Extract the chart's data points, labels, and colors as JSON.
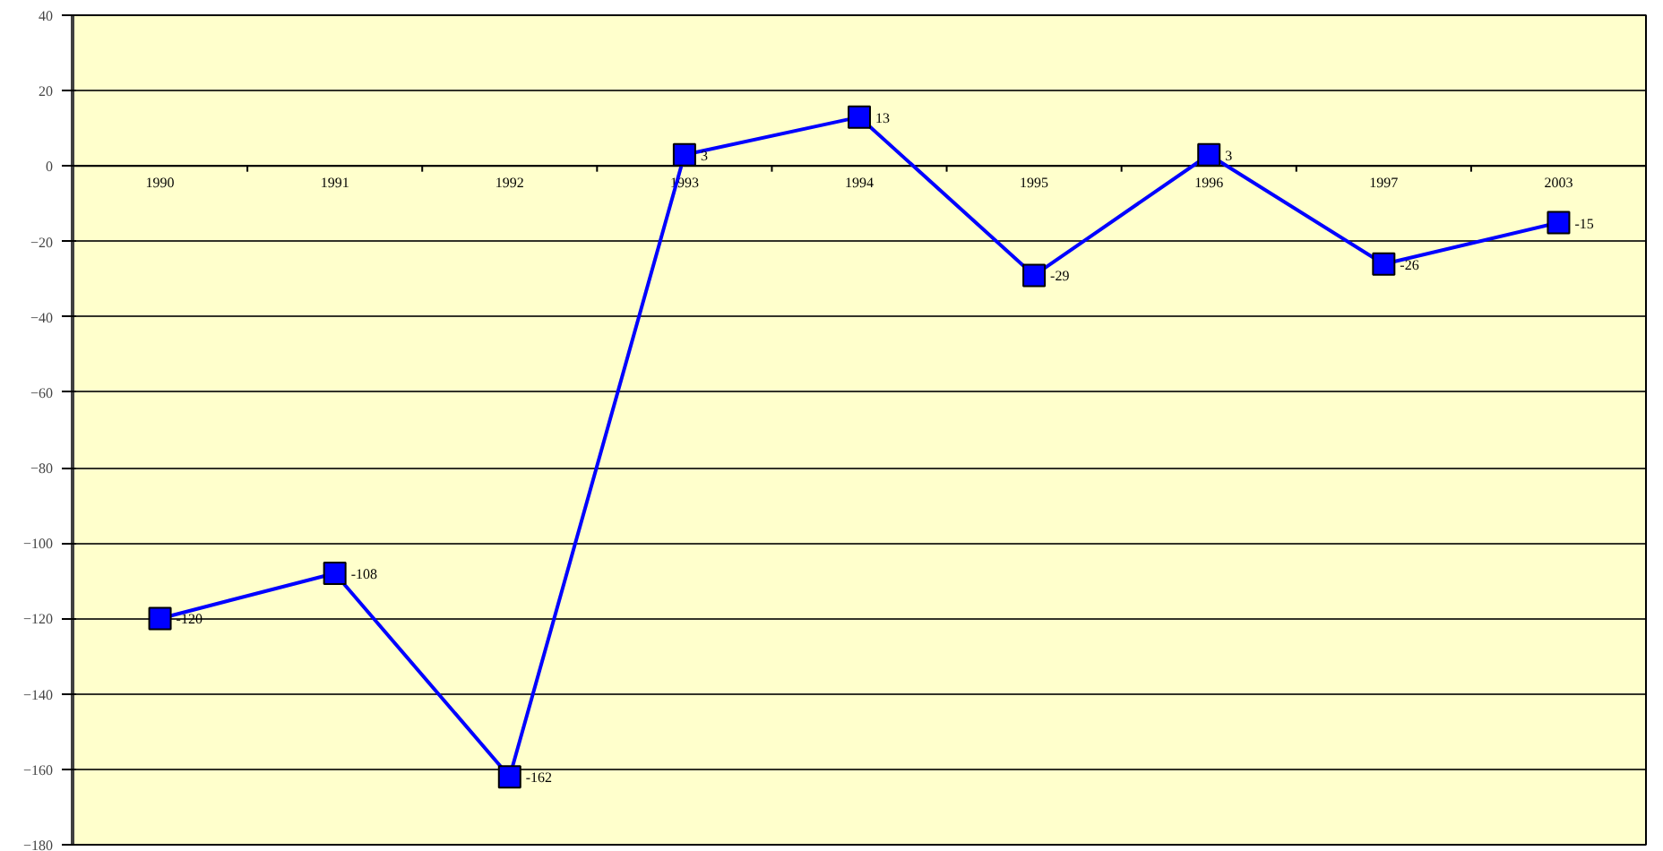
{
  "chart_data": {
    "type": "line",
    "categories": [
      "1990",
      "1991",
      "1992",
      "1993",
      "1994",
      "1995",
      "1996",
      "1997",
      "2003"
    ],
    "series": [
      {
        "color": "#0000ff",
        "values": [
          -120,
          -108,
          -162,
          3,
          13,
          -29,
          3,
          -26,
          -15
        ]
      }
    ],
    "ylim": [
      -180,
      40
    ],
    "yticks": [
      -180,
      -160,
      -140,
      -120,
      -100,
      -80,
      -60,
      -40,
      -20,
      0,
      20,
      40
    ],
    "grid": "y",
    "marker": "square",
    "line_style": "solid",
    "data_labels": true
  }
}
